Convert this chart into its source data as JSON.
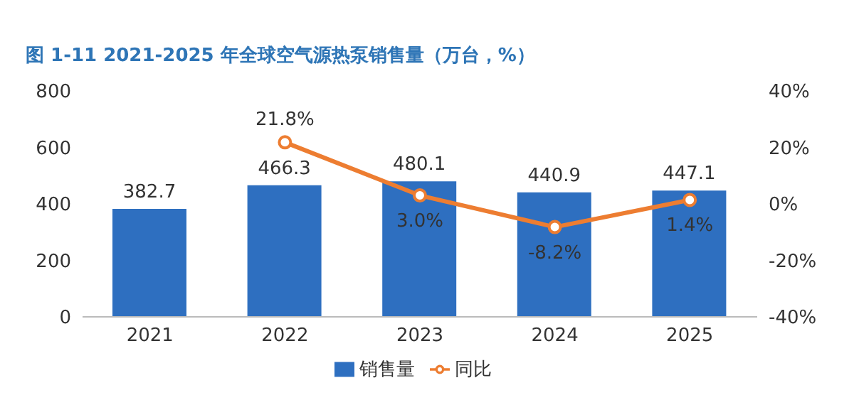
{
  "chart_data": {
    "type": "bar",
    "title": "图 1-11 2021-2025 年全球空气源热泵销售量（万台，%）",
    "categories": [
      "2021",
      "2022",
      "2023",
      "2024",
      "2025"
    ],
    "series": [
      {
        "name": "销售量",
        "color": "#2e6fc0",
        "values": [
          382.7,
          466.3,
          480.1,
          440.9,
          447.1
        ],
        "value_labels": [
          "382.7",
          "466.3",
          "480.1",
          "440.9",
          "447.1"
        ]
      },
      {
        "name": "同比",
        "type": "line",
        "axis": "y2",
        "color": "#ed7d31",
        "values": [
          null,
          21.8,
          3.0,
          -8.2,
          1.4
        ],
        "value_labels": [
          null,
          "21.8%",
          "3.0%",
          "-8.2%",
          "1.4%"
        ]
      }
    ],
    "ylim": [
      0,
      800
    ],
    "yticks": [
      0,
      200,
      400,
      600,
      800
    ],
    "y2lim": [
      -40,
      40
    ],
    "y2ticks": [
      {
        "value": -40,
        "label": "-40%"
      },
      {
        "value": -20,
        "label": "-20%"
      },
      {
        "value": 0,
        "label": "0%"
      },
      {
        "value": 20,
        "label": "20%"
      },
      {
        "value": 40,
        "label": "40%"
      }
    ],
    "legend": "bottom",
    "marker": "circle",
    "line_style": "solid"
  }
}
